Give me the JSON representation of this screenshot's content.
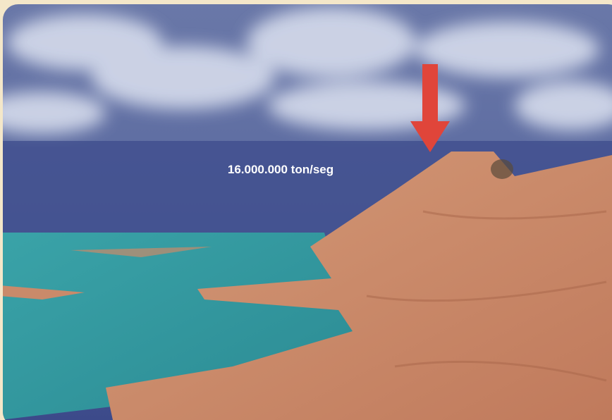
{
  "label": "16.000.000 ton/seg"
}
